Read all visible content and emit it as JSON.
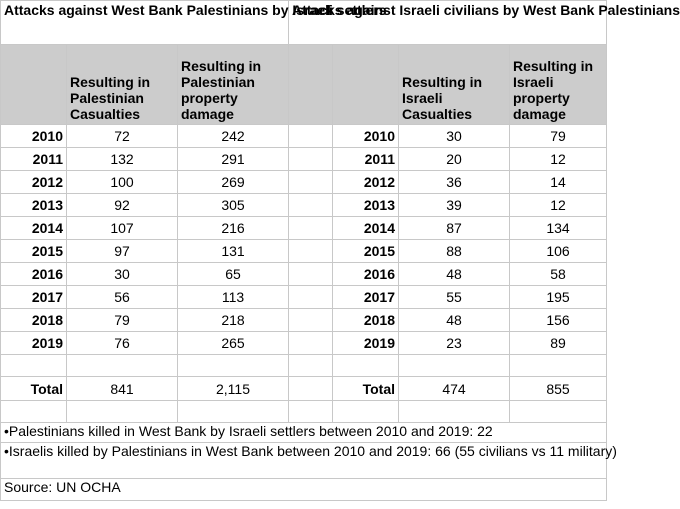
{
  "left_table": {
    "title": "Attacks against West Bank Palestinians by Israeli settlers",
    "col1_header": "Resulting in Palestinian Casualties",
    "col2_header": "Resulting in Palestinian property damage",
    "rows": [
      {
        "year": "2010",
        "casualties": "72",
        "damage": "242"
      },
      {
        "year": "2011",
        "casualties": "132",
        "damage": "291"
      },
      {
        "year": "2012",
        "casualties": "100",
        "damage": "269"
      },
      {
        "year": "2013",
        "casualties": "92",
        "damage": "305"
      },
      {
        "year": "2014",
        "casualties": "107",
        "damage": "216"
      },
      {
        "year": "2015",
        "casualties": "97",
        "damage": "131"
      },
      {
        "year": "2016",
        "casualties": "30",
        "damage": "65"
      },
      {
        "year": "2017",
        "casualties": "56",
        "damage": "113"
      },
      {
        "year": "2018",
        "casualties": "79",
        "damage": "218"
      },
      {
        "year": "2019",
        "casualties": "76",
        "damage": "265"
      }
    ],
    "total_label": "Total",
    "total_casualties": "841",
    "total_damage": "2,115"
  },
  "right_table": {
    "title": "Attacks against Israeli civilians by West Bank Palestinians",
    "col1_header": "Resulting in Israeli Casualties",
    "col2_header": "Resulting in Israeli property damage",
    "rows": [
      {
        "year": "2010",
        "casualties": "30",
        "damage": "79"
      },
      {
        "year": "2011",
        "casualties": "20",
        "damage": "12"
      },
      {
        "year": "2012",
        "casualties": "36",
        "damage": "14"
      },
      {
        "year": "2013",
        "casualties": "39",
        "damage": "12"
      },
      {
        "year": "2014",
        "casualties": "87",
        "damage": "134"
      },
      {
        "year": "2015",
        "casualties": "88",
        "damage": "106"
      },
      {
        "year": "2016",
        "casualties": "48",
        "damage": "58"
      },
      {
        "year": "2017",
        "casualties": "55",
        "damage": "195"
      },
      {
        "year": "2018",
        "casualties": "48",
        "damage": "156"
      },
      {
        "year": "2019",
        "casualties": "23",
        "damage": "89"
      }
    ],
    "total_label": "Total",
    "total_casualties": "474",
    "total_damage": "855"
  },
  "notes": {
    "note1": "•Palestinians killed in West Bank by Israeli settlers between 2010 and 2019: 22",
    "note2": "•Israelis killed by Palestinians in West Bank between 2010 and 2019: 66 (55 civilians vs 11 military)",
    "source": "Source: UN OCHA"
  }
}
